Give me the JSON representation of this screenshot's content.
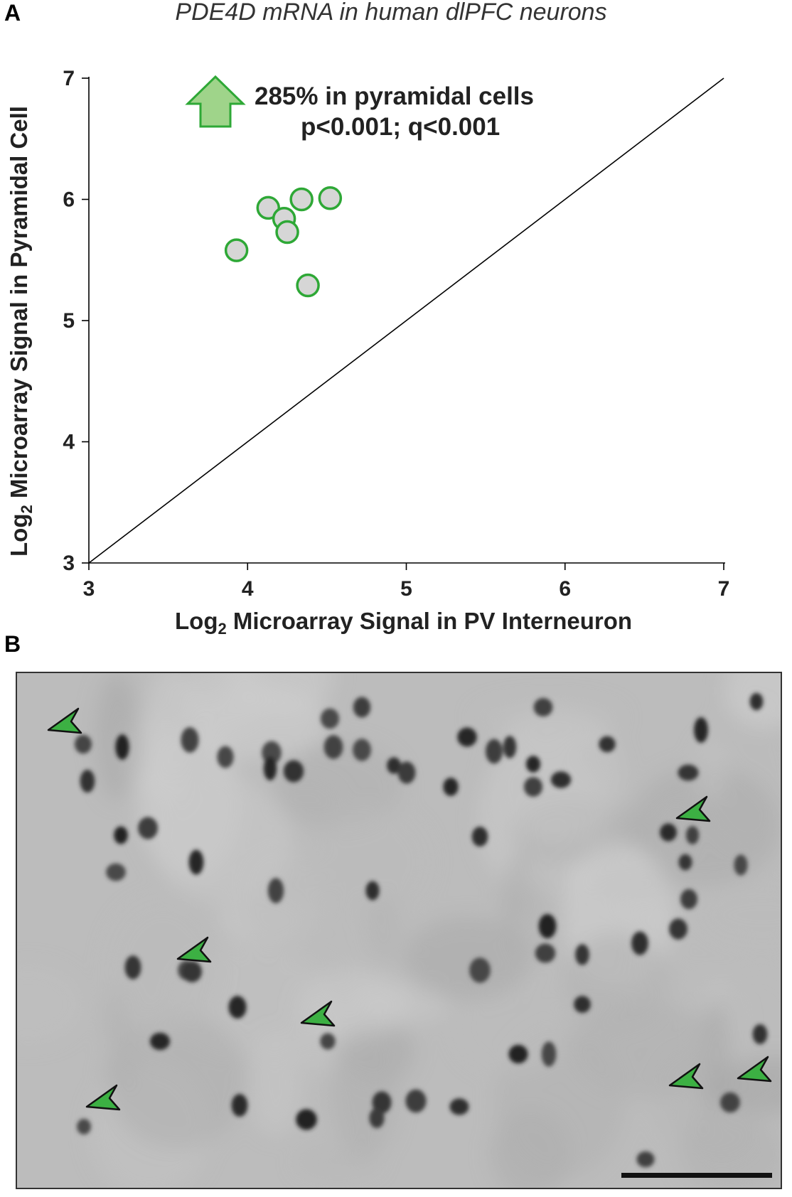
{
  "panels": {
    "a_label": "A",
    "b_label": "B"
  },
  "chart_data": {
    "type": "scatter",
    "title": "PDE4D mRNA in human dlPFC neurons",
    "xlabel": "Log2 Microarray Signal in PV Interneuron",
    "ylabel": "Log2 Microarray Signal in Pyramidal Cell",
    "xlim": [
      3,
      7
    ],
    "ylim": [
      3,
      7
    ],
    "xticks": [
      "3",
      "4",
      "5",
      "6",
      "7"
    ],
    "yticks": [
      "3",
      "4",
      "5",
      "6",
      "7"
    ],
    "identity_line": true,
    "grid": false,
    "points": [
      {
        "x": 4.52,
        "y": 6.01
      },
      {
        "x": 4.34,
        "y": 6.0
      },
      {
        "x": 4.13,
        "y": 5.93
      },
      {
        "x": 4.23,
        "y": 5.84
      },
      {
        "x": 4.25,
        "y": 5.73
      },
      {
        "x": 3.93,
        "y": 5.58
      },
      {
        "x": 4.38,
        "y": 5.29
      }
    ],
    "annotation": {
      "line1": "285% in pyramidal cells",
      "line2": "p<0.001; q<0.001",
      "arrow": "up-arrow-icon"
    },
    "colors": {
      "marker_edge": "#2ea836",
      "marker_fill": "#d6d6d6",
      "arrow_fill": "#9fd48a",
      "arrow_edge": "#2ea836"
    }
  },
  "micrograph": {
    "marker_color": "#3cb043",
    "marker_count": 7
  }
}
